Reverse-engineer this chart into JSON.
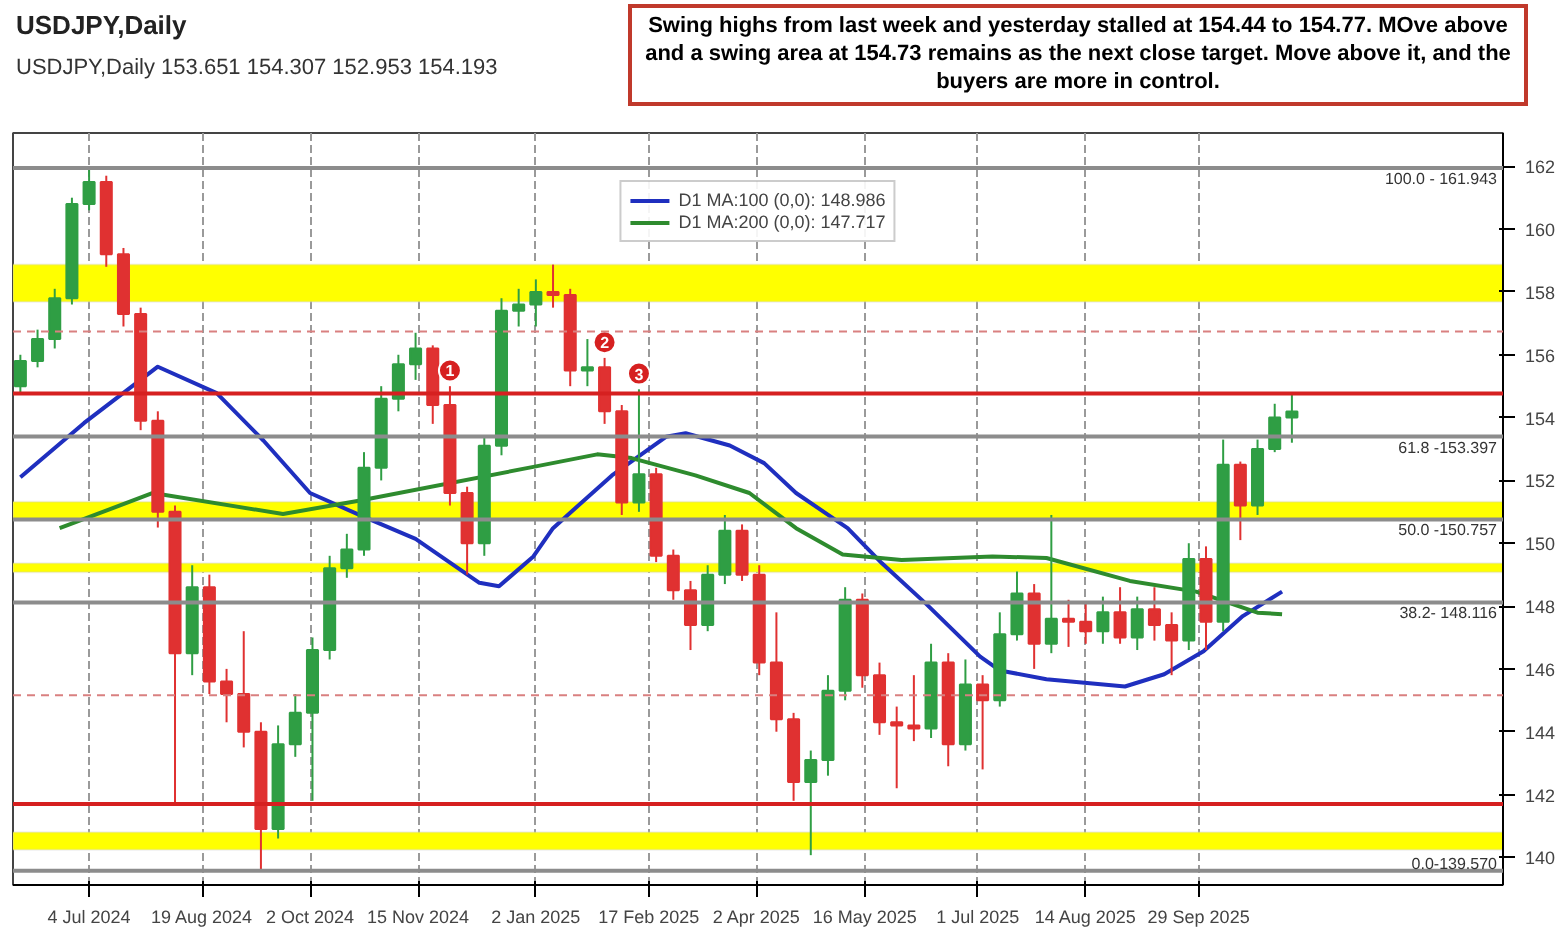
{
  "chart_data": {
    "type": "candlestick",
    "title": "USDJPY,Daily",
    "subtitle": "USDJPY,Daily  153.651 154.307 152.953 154.193",
    "x": [
      "2024-06-06",
      "2024-06-13",
      "2024-06-20",
      "2024-06-27",
      "2024-07-04",
      "2024-07-11",
      "2024-07-18",
      "2024-07-25",
      "2024-08-01",
      "2024-08-08",
      "2024-08-15",
      "2024-08-22",
      "2024-08-29",
      "2024-09-05",
      "2024-09-12",
      "2024-09-19",
      "2024-09-26",
      "2024-10-03",
      "2024-10-10",
      "2024-10-17",
      "2024-10-24",
      "2024-10-31",
      "2024-11-07",
      "2024-11-14",
      "2024-11-21",
      "2024-11-28",
      "2024-12-05",
      "2024-12-12",
      "2024-12-19",
      "2024-12-26",
      "2025-01-02",
      "2025-01-09",
      "2025-01-16",
      "2025-01-23",
      "2025-01-30",
      "2025-02-06",
      "2025-02-13",
      "2025-02-20",
      "2025-02-27",
      "2025-03-06",
      "2025-03-13",
      "2025-03-20",
      "2025-03-27",
      "2025-04-03",
      "2025-04-10",
      "2025-04-17",
      "2025-04-24",
      "2025-05-01",
      "2025-05-08",
      "2025-05-15",
      "2025-05-22",
      "2025-05-29",
      "2025-06-05",
      "2025-06-12",
      "2025-06-19",
      "2025-06-26",
      "2025-07-03",
      "2025-07-10",
      "2025-07-17",
      "2025-07-24",
      "2025-07-31",
      "2025-08-07",
      "2025-08-14",
      "2025-08-21",
      "2025-08-28",
      "2025-09-04",
      "2025-09-11",
      "2025-09-18",
      "2025-09-25",
      "2025-10-02",
      "2025-10-09",
      "2025-10-16",
      "2025-10-23",
      "2025-10-30",
      "2025-11-06"
    ],
    "ohlc": [
      [
        155.0,
        156.0,
        154.8,
        155.8
      ],
      [
        155.8,
        156.8,
        155.6,
        156.5
      ],
      [
        156.5,
        158.1,
        156.2,
        157.8
      ],
      [
        157.8,
        161.0,
        157.6,
        160.8
      ],
      [
        160.8,
        161.943,
        160.6,
        161.5
      ],
      [
        161.5,
        161.7,
        158.8,
        159.2
      ],
      [
        159.2,
        159.4,
        156.9,
        157.3
      ],
      [
        157.3,
        157.5,
        153.6,
        153.9
      ],
      [
        153.9,
        154.2,
        150.5,
        151.0
      ],
      [
        151.0,
        151.2,
        141.75,
        146.5
      ],
      [
        146.5,
        149.3,
        145.8,
        148.6
      ],
      [
        148.6,
        149.0,
        145.2,
        145.6
      ],
      [
        145.6,
        146.0,
        144.3,
        145.2
      ],
      [
        145.2,
        147.2,
        143.5,
        144.0
      ],
      [
        144.0,
        144.3,
        139.57,
        140.9
      ],
      [
        140.9,
        144.2,
        140.6,
        143.6
      ],
      [
        143.6,
        145.2,
        143.2,
        144.6
      ],
      [
        144.6,
        147.0,
        141.8,
        146.6
      ],
      [
        146.6,
        149.6,
        146.3,
        149.2
      ],
      [
        149.2,
        150.3,
        148.9,
        149.8
      ],
      [
        149.8,
        152.9,
        149.6,
        152.4
      ],
      [
        152.4,
        155.0,
        152.0,
        154.6
      ],
      [
        154.6,
        156.0,
        154.2,
        155.7
      ],
      [
        155.7,
        156.7,
        155.2,
        156.2
      ],
      [
        156.2,
        156.3,
        153.8,
        154.4
      ],
      [
        154.4,
        155.0,
        151.2,
        151.6
      ],
      [
        151.6,
        151.8,
        149.0,
        150.0
      ],
      [
        150.0,
        153.4,
        149.6,
        153.1
      ],
      [
        153.1,
        157.8,
        152.8,
        157.4
      ],
      [
        157.4,
        158.1,
        156.9,
        157.6
      ],
      [
        157.6,
        158.4,
        156.9,
        158.0
      ],
      [
        158.0,
        158.87,
        157.5,
        157.9
      ],
      [
        157.9,
        158.1,
        155.0,
        155.5
      ],
      [
        155.5,
        156.5,
        155.0,
        155.6
      ],
      [
        155.6,
        155.9,
        153.8,
        154.2
      ],
      [
        154.2,
        154.4,
        150.9,
        151.3
      ],
      [
        151.3,
        154.9,
        151.0,
        152.2
      ],
      [
        152.2,
        152.4,
        149.4,
        149.6
      ],
      [
        149.6,
        149.8,
        148.2,
        148.5
      ],
      [
        148.5,
        148.8,
        146.6,
        147.4
      ],
      [
        147.4,
        149.3,
        147.2,
        149.0
      ],
      [
        149.0,
        150.9,
        148.7,
        150.4
      ],
      [
        150.4,
        150.6,
        148.8,
        149.0
      ],
      [
        149.0,
        149.3,
        145.8,
        146.2
      ],
      [
        146.2,
        147.8,
        144.0,
        144.4
      ],
      [
        144.4,
        144.6,
        141.8,
        142.4
      ],
      [
        142.4,
        143.4,
        140.07,
        143.1
      ],
      [
        143.1,
        145.8,
        142.6,
        145.3
      ],
      [
        145.3,
        148.6,
        145.0,
        148.2
      ],
      [
        148.2,
        148.4,
        145.4,
        145.8
      ],
      [
        145.8,
        146.2,
        143.9,
        144.3
      ],
      [
        144.3,
        144.8,
        142.2,
        144.2
      ],
      [
        144.2,
        145.8,
        143.7,
        144.1
      ],
      [
        144.1,
        146.8,
        143.8,
        146.2
      ],
      [
        146.2,
        146.5,
        142.9,
        143.6
      ],
      [
        143.6,
        146.3,
        143.4,
        145.5
      ],
      [
        145.5,
        145.8,
        142.8,
        145.0
      ],
      [
        145.0,
        147.8,
        144.8,
        147.1
      ],
      [
        147.1,
        149.1,
        146.9,
        148.4
      ],
      [
        148.4,
        148.7,
        146.0,
        146.8
      ],
      [
        146.8,
        150.9,
        146.5,
        147.6
      ],
      [
        147.6,
        148.2,
        146.7,
        147.5
      ],
      [
        147.5,
        148.1,
        146.8,
        147.2
      ],
      [
        147.2,
        148.3,
        146.8,
        147.8
      ],
      [
        147.8,
        148.6,
        146.8,
        147.0
      ],
      [
        147.0,
        148.3,
        146.6,
        147.9
      ],
      [
        147.9,
        148.6,
        146.9,
        147.4
      ],
      [
        147.4,
        147.8,
        145.8,
        146.9
      ],
      [
        146.9,
        150.0,
        146.6,
        149.5
      ],
      [
        149.5,
        149.9,
        146.6,
        147.5
      ],
      [
        147.5,
        153.3,
        147.2,
        152.5
      ],
      [
        152.5,
        152.6,
        150.1,
        151.2
      ],
      [
        151.2,
        153.3,
        150.9,
        153.0
      ],
      [
        153.0,
        154.44,
        152.9,
        154.0
      ],
      [
        154.0,
        154.77,
        153.2,
        154.193
      ]
    ],
    "colors": [
      "#2f9e44",
      "#2f9e44",
      "#2f9e44",
      "#2f9e44",
      "#2f9e44",
      "#e03131",
      "#e03131",
      "#e03131",
      "#e03131",
      "#e03131",
      "#2f9e44",
      "#e03131",
      "#e03131",
      "#e03131",
      "#e03131",
      "#2f9e44",
      "#2f9e44",
      "#2f9e44",
      "#2f9e44",
      "#2f9e44",
      "#2f9e44",
      "#2f9e44",
      "#2f9e44",
      "#2f9e44",
      "#e03131",
      "#e03131",
      "#e03131",
      "#2f9e44",
      "#2f9e44",
      "#2f9e44",
      "#2f9e44",
      "#e03131",
      "#e03131",
      "#2f9e44",
      "#e03131",
      "#e03131",
      "#2f9e44",
      "#e03131",
      "#e03131",
      "#e03131",
      "#2f9e44",
      "#2f9e44",
      "#e03131",
      "#e03131",
      "#e03131",
      "#e03131",
      "#2f9e44",
      "#2f9e44",
      "#2f9e44",
      "#e03131",
      "#e03131",
      "#e03131",
      "#e03131",
      "#2f9e44",
      "#e03131",
      "#2f9e44",
      "#e03131",
      "#2f9e44",
      "#2f9e44",
      "#e03131",
      "#2f9e44",
      "#e03131",
      "#e03131",
      "#2f9e44",
      "#e03131",
      "#2f9e44",
      "#e03131",
      "#e03131",
      "#2f9e44",
      "#e03131",
      "#2f9e44",
      "#e03131",
      "#2f9e44",
      "#2f9e44",
      "#2f9e44"
    ],
    "series": [
      {
        "type": "line",
        "name": "D1 MA:100 (0,0): 148.986",
        "color": "#1f2fbf",
        "x": [
          "2024-06-06",
          "2024-07-02",
          "2024-08-01",
          "2024-08-25",
          "2024-09-13",
          "2024-10-02",
          "2024-10-23",
          "2024-11-14",
          "2024-12-10",
          "2024-12-18",
          "2025-01-01",
          "2025-01-09",
          "2025-02-02",
          "2025-02-24",
          "2025-03-04",
          "2025-03-22",
          "2025-04-05",
          "2025-04-18",
          "2025-05-09",
          "2025-05-23",
          "2025-06-10",
          "2025-07-02",
          "2025-07-10",
          "2025-07-29",
          "2025-08-30",
          "2025-09-15",
          "2025-10-01",
          "2025-10-17",
          "2025-11-02"
        ],
        "values": [
          152.1,
          153.83,
          155.62,
          154.78,
          153.27,
          151.6,
          150.87,
          150.14,
          148.74,
          148.63,
          149.58,
          150.48,
          152.16,
          153.39,
          153.5,
          153.11,
          152.55,
          151.6,
          150.48,
          149.36,
          148.07,
          146.39,
          145.95,
          145.67,
          145.44,
          145.83,
          146.56,
          147.68,
          148.46
        ]
      },
      {
        "type": "line",
        "name": "D1 MA:200 (0,0): 147.717",
        "color": "#2e8b2e",
        "x": [
          "2024-06-22",
          "2024-07-30",
          "2024-09-21",
          "2024-10-23",
          "2025-01-01",
          "2025-01-27",
          "2025-02-10",
          "2025-03-08",
          "2025-03-30",
          "2025-04-18",
          "2025-05-07",
          "2025-05-31",
          "2025-07-07",
          "2025-07-29",
          "2025-09-01",
          "2025-09-28",
          "2025-10-23",
          "2025-11-02"
        ],
        "values": [
          150.48,
          151.6,
          150.93,
          151.37,
          152.43,
          152.83,
          152.71,
          152.16,
          151.6,
          150.48,
          149.64,
          149.47,
          149.58,
          149.53,
          148.8,
          148.46,
          147.79,
          147.74
        ]
      }
    ],
    "xlim": [
      "2024-06-03",
      "2026-01-31"
    ],
    "ylim": [
      139.12,
      163.06
    ],
    "xticks": [
      {
        "value": "2024-07-04",
        "label": "4 Jul 2024"
      },
      {
        "value": "2024-08-19",
        "label": "19 Aug 2024"
      },
      {
        "value": "2024-10-02",
        "label": "2 Oct 2024"
      },
      {
        "value": "2024-11-15",
        "label": "15 Nov 2024"
      },
      {
        "value": "2025-01-02",
        "label": "2 Jan 2025"
      },
      {
        "value": "2025-02-17",
        "label": "17 Feb 2025"
      },
      {
        "value": "2025-04-02",
        "label": "2 Apr 2025"
      },
      {
        "value": "2025-05-16",
        "label": "16 May 2025"
      },
      {
        "value": "2025-07-01",
        "label": "1 Jul 2025"
      },
      {
        "value": "2025-08-14",
        "label": "14 Aug 2025"
      },
      {
        "value": "2025-09-29",
        "label": "29 Sep 2025"
      }
    ],
    "yticks": [
      140,
      142,
      144,
      146,
      148,
      150,
      152,
      154,
      156,
      158,
      160,
      162
    ],
    "grid": "x",
    "legend": "top",
    "bands": [
      {
        "axis": "y",
        "from": 157.69,
        "to": 158.87,
        "color": "#ffff00"
      },
      {
        "axis": "y",
        "from": 150.76,
        "to": 151.32,
        "color": "#ffff00"
      },
      {
        "axis": "y",
        "from": 149.08,
        "to": 149.36,
        "color": "#ffff00"
      },
      {
        "axis": "y",
        "from": 140.24,
        "to": 140.8,
        "color": "#ffff00"
      }
    ],
    "ref_lines": [
      {
        "axis": "y",
        "value": 161.943,
        "label": null,
        "color": "#8c8c8c"
      },
      {
        "axis": "y",
        "value": 153.397,
        "label": null,
        "color": "#8c8c8c"
      },
      {
        "axis": "y",
        "value": 150.757,
        "label": null,
        "color": "#8c8c8c"
      },
      {
        "axis": "y",
        "value": 148.116,
        "label": null,
        "color": "#8c8c8c"
      },
      {
        "axis": "y",
        "value": 139.57,
        "label": null,
        "color": "#8c8c8c"
      },
      {
        "axis": "y",
        "value": 154.77,
        "label": null,
        "color": "#d62020"
      },
      {
        "axis": "y",
        "value": 141.7,
        "label": null,
        "color": "#d62020"
      },
      {
        "axis": "y",
        "value": 156.74,
        "label": null,
        "color": "#d98080",
        "line_style": "dashed"
      },
      {
        "axis": "y",
        "value": 145.16,
        "label": null,
        "color": "#d98080",
        "line_style": "dashed"
      }
    ],
    "annotations": [
      "Swing highs from last week and yesterday stalled at 154.44 to 154.77. MOve above and a swing area at 154.73 remains as the next close target. Move above it, and the buyers are more in control.",
      {
        "text": "1",
        "x": "2024-11-28",
        "y": 155.5
      },
      {
        "text": "2",
        "x": "2025-01-30",
        "y": 156.4
      },
      {
        "text": "3",
        "x": "2025-02-13",
        "y": 155.4
      },
      {
        "text": "100.0 - 161.943",
        "x": "2026-01-31",
        "y": 161.943
      },
      {
        "text": "61.8 -153.397",
        "x": "2026-01-31",
        "y": 153.397
      },
      {
        "text": "50.0 -150.757",
        "x": "2026-01-31",
        "y": 150.757
      },
      {
        "text": "38.2- 148.116",
        "x": "2026-01-31",
        "y": 148.116
      },
      {
        "text": "0.0-139.570",
        "x": "2026-01-31",
        "y": 139.57
      }
    ]
  }
}
